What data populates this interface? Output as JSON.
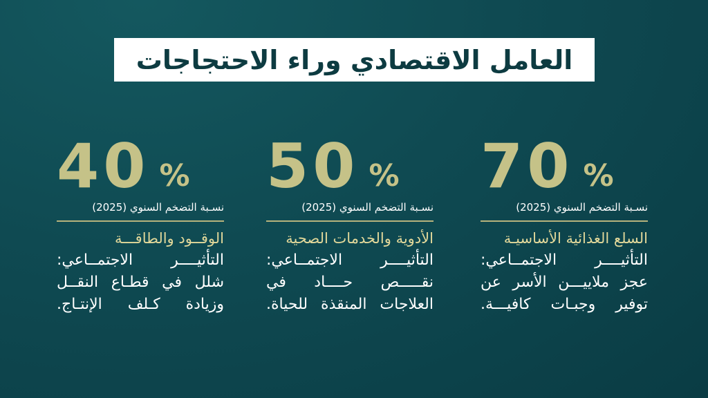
{
  "title": "العامل الاقتصادي وراء الاحتجاجات",
  "stats": [
    {
      "value": "70",
      "symbol": "%",
      "subtitle": "نسـبة التضخم السنوي (2025)",
      "category": "السلع الغذائية الأساسيـة",
      "impact_lines": [
        "التأثيــــر الاجتمــاعي:",
        "عجز ملاييـــن الأسر عن",
        "توفير وجبـات كافيـــة."
      ]
    },
    {
      "value": "50",
      "symbol": "%",
      "subtitle": "نسـبة التضخم السنوي (2025)",
      "category": "الأدوية والخدمات الصحية",
      "impact_lines": [
        "التأثيــــر الاجتمــاعي:",
        "نقـــــص حــــاد في",
        "العلاجات المنقذة للحياة."
      ]
    },
    {
      "value": "40",
      "symbol": "%",
      "subtitle": "نسـبة التضخم السنوي (2025)",
      "category": "الوقــود والطاقـــة",
      "impact_lines": [
        "التأثيــــر الاجتمــاعي:",
        "شلل في قطـاع النقــل",
        "وزيادة كـلف الإنتـاج."
      ]
    }
  ],
  "colors": {
    "background": "#0f4a52",
    "accent_gold": "#c5c288",
    "category_gold": "#e2d89a",
    "title_box": "#ffffff",
    "title_text": "#0d3b41"
  }
}
